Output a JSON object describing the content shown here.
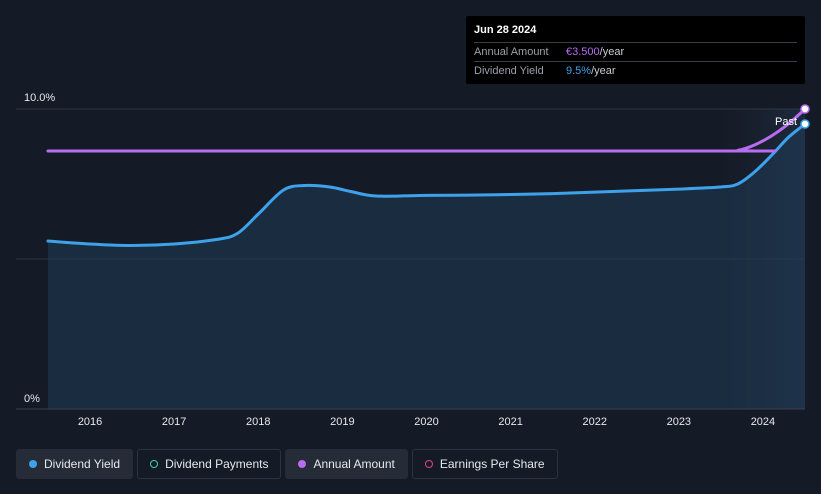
{
  "tooltip": {
    "date": "Jun 28 2024",
    "rows": [
      {
        "label": "Annual Amount",
        "value": "€3.500",
        "unit": "/year"
      },
      {
        "label": "Dividend Yield",
        "value": "9.5%",
        "unit": "/year"
      }
    ]
  },
  "legend": [
    {
      "label": "Dividend Yield",
      "color": "#3ea2ea",
      "filled": true
    },
    {
      "label": "Dividend Payments",
      "color": "#3ecfb8",
      "filled": false
    },
    {
      "label": "Annual Amount",
      "color": "#b86cf0",
      "filled": true
    },
    {
      "label": "Earnings Per Share",
      "color": "#e0457b",
      "filled": false
    }
  ],
  "chart_data": {
    "type": "line",
    "y_tick_labels": [
      "10.0%",
      "0%"
    ],
    "x_tick_labels": [
      "2016",
      "2017",
      "2018",
      "2019",
      "2020",
      "2021",
      "2022",
      "2023",
      "2024"
    ],
    "ylim": [
      0,
      10
    ],
    "xlim": [
      2015.5,
      2024.5
    ],
    "past_label": "Past",
    "past_start": 2023.5,
    "grid": true,
    "series": [
      {
        "name": "Dividend Yield",
        "color": "#3ea2ea",
        "x": [
          2015.5,
          2016.0,
          2016.5,
          2017.0,
          2017.5,
          2017.75,
          2018.0,
          2018.3,
          2018.55,
          2018.85,
          2019.1,
          2019.4,
          2020.0,
          2020.5,
          2021.0,
          2021.5,
          2022.0,
          2022.5,
          2023.0,
          2023.5,
          2023.7,
          2023.9,
          2024.1,
          2024.3,
          2024.5
        ],
        "values": [
          5.6,
          5.5,
          5.45,
          5.5,
          5.65,
          5.85,
          6.5,
          7.3,
          7.45,
          7.4,
          7.25,
          7.1,
          7.12,
          7.13,
          7.15,
          7.18,
          7.23,
          7.28,
          7.33,
          7.4,
          7.5,
          7.9,
          8.45,
          9.05,
          9.5
        ]
      },
      {
        "name": "Annual Amount",
        "color": "#b86cf0",
        "x": [
          2015.5,
          2023.5,
          2023.7,
          2023.9,
          2024.1,
          2024.3,
          2024.5
        ],
        "values": [
          8.6,
          8.6,
          8.62,
          8.8,
          9.1,
          9.5,
          10.0
        ]
      }
    ]
  }
}
